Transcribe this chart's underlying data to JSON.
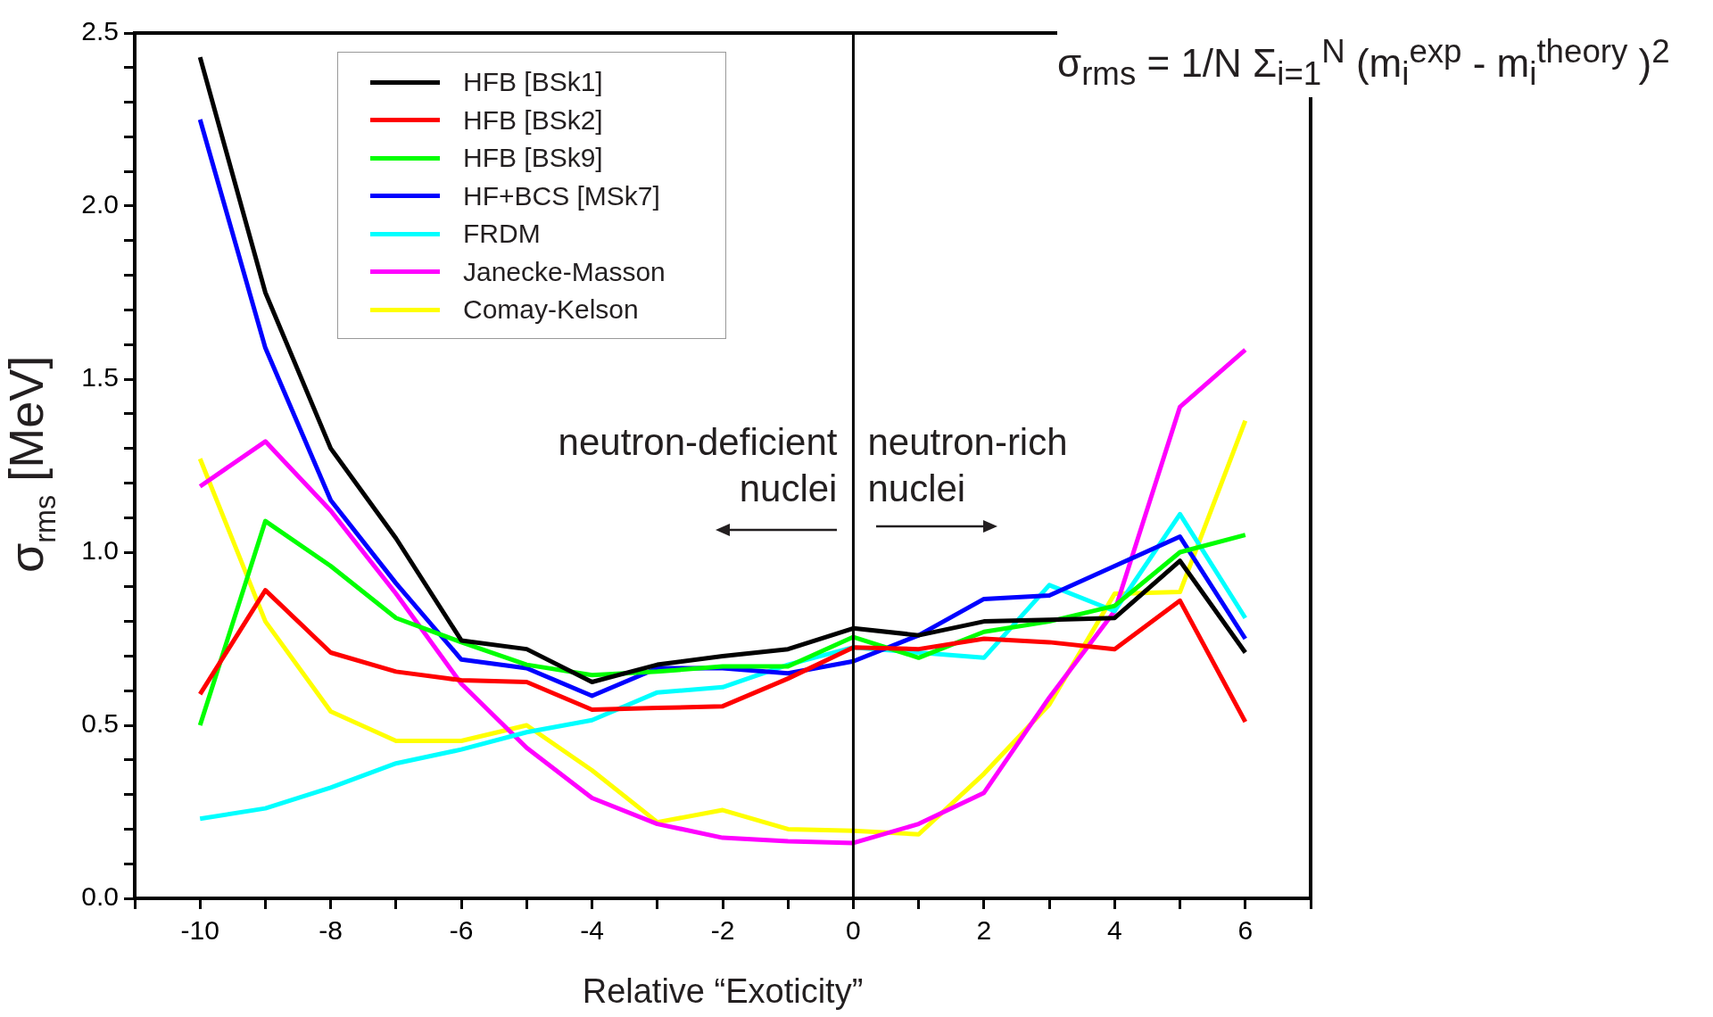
{
  "chart_data": {
    "type": "line",
    "xlabel": "Relative “Exoticity”",
    "ylabel": "σ$_{rms}$ [MeV]",
    "x": [
      -10,
      -9,
      -8,
      -7,
      -6,
      -5,
      -4,
      -3,
      -2,
      -1,
      0,
      1,
      2,
      3,
      4,
      5,
      6
    ],
    "series": [
      {
        "name": "HFB [BSk1]",
        "color": "#000000",
        "values": [
          2.43,
          1.75,
          1.3,
          1.04,
          0.745,
          0.72,
          0.625,
          0.675,
          0.7,
          0.72,
          0.78,
          0.76,
          0.8,
          0.805,
          0.81,
          0.975,
          0.71
        ]
      },
      {
        "name": "HFB [BSk2]",
        "color": "#ff0000",
        "values": [
          0.59,
          0.89,
          0.71,
          0.655,
          0.63,
          0.625,
          0.545,
          0.55,
          0.555,
          0.635,
          0.725,
          0.72,
          0.75,
          0.74,
          0.72,
          0.86,
          0.51
        ]
      },
      {
        "name": "HFB [BSk9]",
        "color": "#00ff00",
        "values": [
          0.5,
          1.09,
          0.96,
          0.81,
          0.74,
          0.675,
          0.645,
          0.655,
          0.67,
          0.67,
          0.755,
          0.695,
          0.77,
          0.8,
          0.845,
          1.0,
          1.05
        ]
      },
      {
        "name": "HF+BCS [MSk7]",
        "color": "#0000ff",
        "values": [
          2.25,
          1.59,
          1.15,
          0.91,
          0.69,
          0.665,
          0.585,
          0.665,
          0.665,
          0.65,
          0.685,
          0.76,
          0.865,
          0.875,
          0.96,
          1.045,
          0.75
        ]
      },
      {
        "name": "FRDM",
        "color": "#00ffff",
        "values": [
          0.23,
          0.26,
          0.32,
          0.39,
          0.43,
          0.48,
          0.515,
          0.595,
          0.61,
          0.675,
          0.725,
          0.71,
          0.695,
          0.905,
          0.83,
          1.11,
          0.81
        ]
      },
      {
        "name": "Janecke-Masson",
        "color": "#ff00ff",
        "values": [
          1.19,
          1.32,
          1.12,
          0.88,
          0.62,
          0.435,
          0.29,
          0.215,
          0.175,
          0.165,
          0.16,
          0.215,
          0.305,
          0.58,
          0.83,
          1.42,
          1.585
        ]
      },
      {
        "name": "Comay-Kelson",
        "color": "#ffff00",
        "values": [
          1.27,
          0.8,
          0.54,
          0.455,
          0.455,
          0.5,
          0.37,
          0.22,
          0.255,
          0.2,
          0.195,
          0.185,
          0.36,
          0.56,
          0.88,
          0.885,
          1.38
        ]
      }
    ],
    "xlim": [
      -11,
      7
    ],
    "xticks": [
      {
        "value": -11,
        "label": null
      },
      -10,
      {
        "value": -9,
        "label": null
      },
      -8,
      {
        "value": -7,
        "label": null
      },
      -6,
      {
        "value": -5,
        "label": null
      },
      -4,
      {
        "value": -3,
        "label": null
      },
      -2,
      {
        "value": -1,
        "label": null
      },
      0,
      {
        "value": 1,
        "label": null
      },
      2,
      {
        "value": 3,
        "label": null
      },
      4,
      {
        "value": 5,
        "label": null
      },
      6,
      {
        "value": 7,
        "label": null
      }
    ],
    "ylim": [
      0,
      2.5
    ],
    "yticks": [
      {
        "value": 0,
        "label": "0.0"
      },
      {
        "value": 0.1,
        "label": null
      },
      {
        "value": 0.2,
        "label": null
      },
      {
        "value": 0.3,
        "label": null
      },
      {
        "value": 0.4,
        "label": null
      },
      0.5,
      {
        "value": 0.6,
        "label": null
      },
      {
        "value": 0.7,
        "label": null
      },
      {
        "value": 0.8,
        "label": null
      },
      {
        "value": 0.9,
        "label": null
      },
      {
        "value": 1,
        "label": "1.0"
      },
      {
        "value": 1.1,
        "label": null
      },
      {
        "value": 1.2,
        "label": null
      },
      {
        "value": 1.3,
        "label": null
      },
      {
        "value": 1.4,
        "label": null
      },
      1.5,
      {
        "value": 1.6,
        "label": null
      },
      {
        "value": 1.7,
        "label": null
      },
      {
        "value": 1.8,
        "label": null
      },
      {
        "value": 1.9,
        "label": null
      },
      {
        "value": 2,
        "label": "2.0"
      },
      {
        "value": 2.1,
        "label": null
      },
      {
        "value": 2.2,
        "label": null
      },
      {
        "value": 2.3,
        "label": null
      },
      {
        "value": 2.4,
        "label": null
      },
      2.5
    ],
    "ref_lines": [
      {
        "axis": "x",
        "value": 0,
        "color": "#000000"
      }
    ],
    "annotations": [
      "neutron-deficient\nnuclei",
      "neutron-rich\nnuclei",
      "σ$_{rms}$ = 1/N Σ$_{i=1}$$^{N}$ (m$_{i}$$^{exp}$ - m$_{i}$$^{theory}$ )$^{2}$"
    ],
    "grid": false,
    "legend": "top left",
    "marker": "none",
    "line_style": "solid"
  }
}
